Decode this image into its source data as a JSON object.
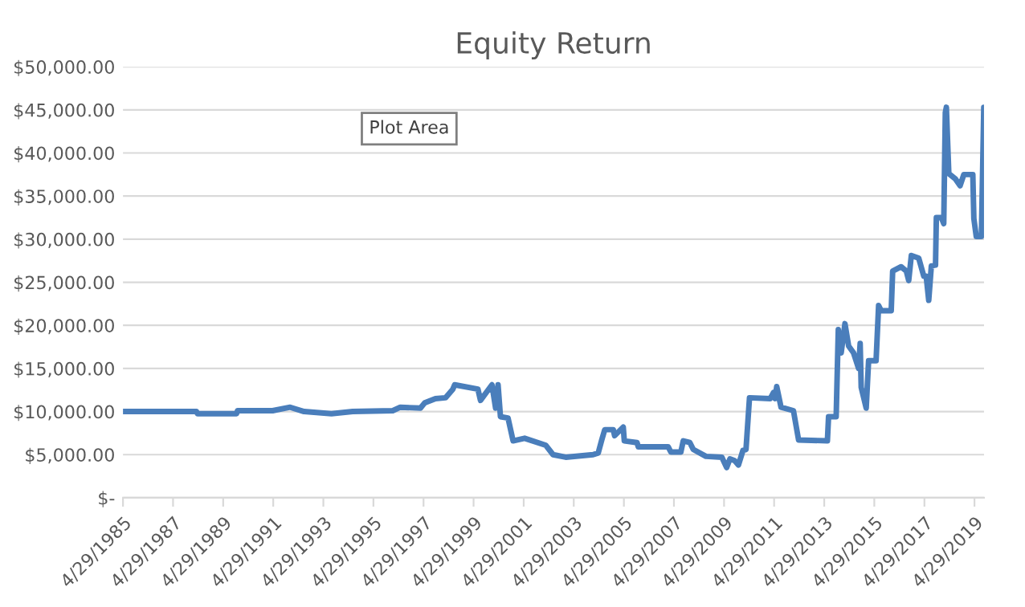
{
  "chart_data": {
    "type": "line",
    "title": "Equity Return",
    "x": [
      "1985-04-29",
      "1988-04-05",
      "1988-04-20",
      "1989-11-10",
      "1989-11-25",
      "1991-04-20",
      "1992-01-01",
      "1992-07-22",
      "1993-08-25",
      "1994-07-01",
      "1996-02-05",
      "1996-05-25",
      "1997-03-15",
      "1997-05-15",
      "1997-10-20",
      "1998-03-15",
      "1998-07-01",
      "1998-07-27",
      "1999-07-01",
      "1999-08-08",
      "2000-01-22",
      "2000-03-15",
      "2000-04-20",
      "2000-05-25",
      "2000-09-12",
      "2000-11-25",
      "2001-05-12",
      "2002-03-15",
      "2002-07-01",
      "2003-01-01",
      "2004-02-05",
      "2004-04-20",
      "2004-06-10",
      "2004-07-24",
      "2004-11-25",
      "2004-12-15",
      "2005-04-20",
      "2005-05-05",
      "2005-11-07",
      "2005-11-25",
      "2007-02-05",
      "2007-03-15",
      "2007-08-08",
      "2007-09-12",
      "2007-12-17",
      "2008-02-05",
      "2008-08-08",
      "2009-03-28",
      "2009-06-06",
      "2009-07-24",
      "2009-10-01",
      "2009-11-25",
      "2010-01-30",
      "2010-03-15",
      "2010-05-05",
      "2011-03-04",
      "2011-04-20",
      "2011-05-12",
      "2011-06-06",
      "2011-08-08",
      "2012-02-05",
      "2012-04-20",
      "2013-06-14",
      "2013-07-01",
      "2013-10-20",
      "2013-11-20",
      "2014-01-01",
      "2014-02-25",
      "2014-04-20",
      "2014-07-01",
      "2014-09-12",
      "2014-10-05",
      "2014-10-20",
      "2015-01-01",
      "2015-02-05",
      "2015-05-25",
      "2015-07-01",
      "2015-08-08",
      "2016-01-01",
      "2016-01-22",
      "2016-05-25",
      "2016-08-08",
      "2016-09-12",
      "2016-10-20",
      "2017-02-05",
      "2017-04-20",
      "2017-05-25",
      "2017-07-01",
      "2017-08-08",
      "2017-10-08",
      "2017-10-20",
      "2018-01-01",
      "2018-02-05",
      "2018-02-28",
      "2018-03-15",
      "2018-04-20",
      "2018-07-24",
      "2018-10-01",
      "2018-11-25",
      "2019-04-05",
      "2019-04-20",
      "2019-05-25",
      "2019-08-08",
      "2019-09-12"
    ],
    "series": [
      {
        "color": "#4a7ebb",
        "values": [
          10000,
          10000,
          9750,
          9750,
          10100,
          10100,
          10500,
          10000,
          9750,
          10000,
          10100,
          10500,
          10400,
          11000,
          11500,
          11600,
          12600,
          13100,
          12600,
          11300,
          13100,
          10400,
          13100,
          9400,
          9250,
          6600,
          6900,
          6100,
          5000,
          4700,
          5000,
          5200,
          6700,
          7900,
          7900,
          7200,
          8200,
          6600,
          6400,
          5900,
          5900,
          5300,
          5300,
          6600,
          6400,
          5600,
          4800,
          4700,
          3500,
          4500,
          4300,
          3800,
          5500,
          5600,
          11600,
          11500,
          12200,
          11500,
          12900,
          10500,
          10100,
          6700,
          6600,
          9400,
          9400,
          19500,
          16800,
          20200,
          17600,
          16800,
          15000,
          17900,
          12800,
          10400,
          15900,
          15900,
          22300,
          21700,
          21700,
          26300,
          26800,
          26300,
          25200,
          28100,
          27800,
          25700,
          25700,
          22900,
          26900,
          27000,
          32500,
          32500,
          31800,
          44700,
          45300,
          37600,
          37000,
          36200,
          37500,
          37500,
          32400,
          30300,
          30300,
          45300
        ]
      }
    ],
    "xlim": [
      "1985-04-29",
      "2019-09-15"
    ],
    "xticks": [
      {
        "value": "1985-04-29",
        "label": "4/29/1985"
      },
      {
        "value": "1987-04-29",
        "label": "4/29/1987"
      },
      {
        "value": "1989-04-29",
        "label": "4/29/1989"
      },
      {
        "value": "1991-04-29",
        "label": "4/29/1991"
      },
      {
        "value": "1993-04-29",
        "label": "4/29/1993"
      },
      {
        "value": "1995-04-29",
        "label": "4/29/1995"
      },
      {
        "value": "1997-04-29",
        "label": "4/29/1997"
      },
      {
        "value": "1999-04-29",
        "label": "4/29/1999"
      },
      {
        "value": "2001-04-29",
        "label": "4/29/2001"
      },
      {
        "value": "2003-04-29",
        "label": "4/29/2003"
      },
      {
        "value": "2005-04-29",
        "label": "4/29/2005"
      },
      {
        "value": "2007-04-29",
        "label": "4/29/2007"
      },
      {
        "value": "2009-04-29",
        "label": "4/29/2009"
      },
      {
        "value": "2011-04-29",
        "label": "4/29/2011"
      },
      {
        "value": "2013-04-29",
        "label": "4/29/2013"
      },
      {
        "value": "2015-04-29",
        "label": "4/29/2015"
      },
      {
        "value": "2017-04-29",
        "label": "4/29/2017"
      },
      {
        "value": "2019-04-29",
        "label": "4/29/2019"
      }
    ],
    "ylim": [
      0,
      50000
    ],
    "yticks": [
      {
        "value": 0,
        "label": "$-"
      },
      {
        "value": 5000,
        "label": "$5,000.00"
      },
      {
        "value": 10000,
        "label": "$10,000.00"
      },
      {
        "value": 15000,
        "label": "$15,000.00"
      },
      {
        "value": 20000,
        "label": "$20,000.00"
      },
      {
        "value": 25000,
        "label": "$25,000.00"
      },
      {
        "value": 30000,
        "label": "$30,000.00"
      },
      {
        "value": 35000,
        "label": "$35,000.00"
      },
      {
        "value": 40000,
        "label": "$40,000.00"
      },
      {
        "value": 45000,
        "label": "$45,000.00"
      },
      {
        "value": 50000,
        "label": "$50,000.00"
      }
    ],
    "grid": "y",
    "annotations": [
      "Plot Area"
    ]
  }
}
